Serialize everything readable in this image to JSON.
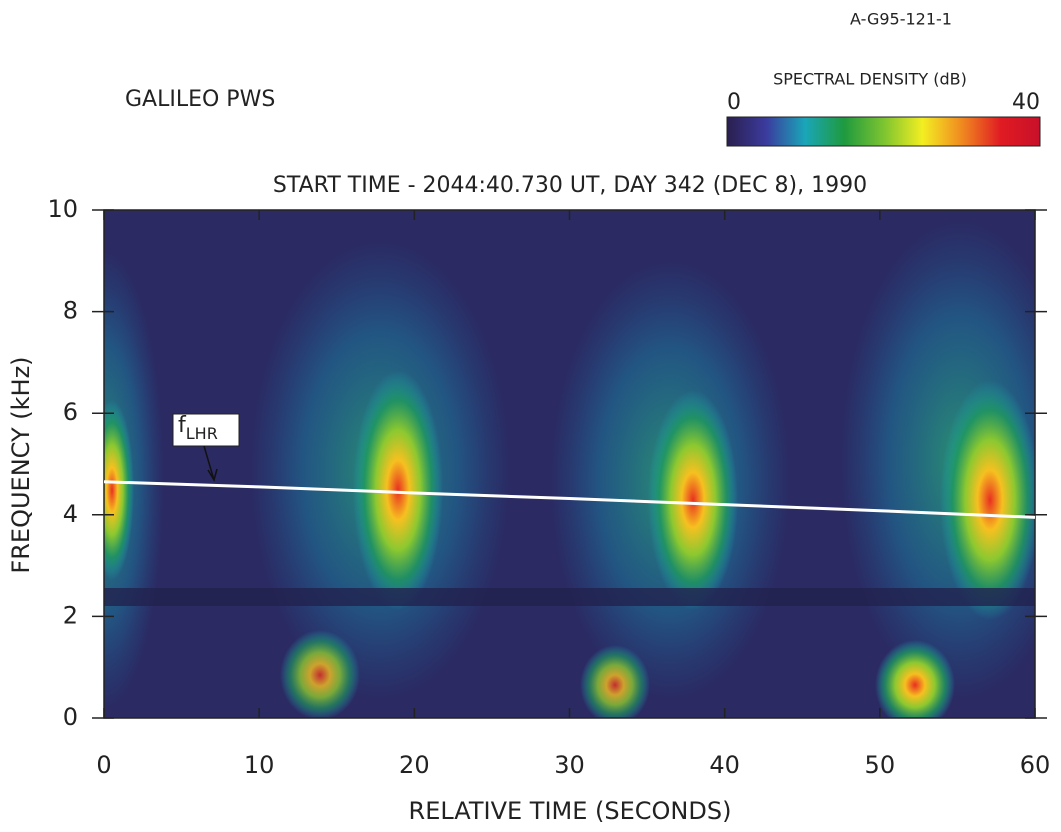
{
  "chart_data": {
    "type": "spectrogram",
    "id_label": "A-G95-121-1",
    "instrument": "GALILEO PWS",
    "title": "START TIME - 2044:40.730 UT, DAY 342 (DEC 8), 1990",
    "xlabel": "RELATIVE TIME (SECONDS)",
    "ylabel": "FREQUENCY (kHz)",
    "xlim": [
      0,
      60
    ],
    "ylim": [
      0,
      10
    ],
    "xticks": [
      0,
      10,
      20,
      30,
      40,
      50,
      60
    ],
    "yticks": [
      0,
      2,
      4,
      6,
      8,
      10
    ],
    "colorbar": {
      "label": "SPECTRAL DENSITY (dB)",
      "range": [
        0,
        40
      ],
      "ticks": [
        0,
        40
      ],
      "colormap": [
        "#2a1f4e",
        "#3b3b9e",
        "#1aa6b8",
        "#1f9a3e",
        "#7cc430",
        "#f3ee22",
        "#f08a20",
        "#e01b22",
        "#c8102a"
      ]
    },
    "series": [
      {
        "name": "f",
        "subscript": "LHR",
        "color": "#ffffff",
        "x": [
          0,
          10,
          20,
          30,
          40,
          50,
          60
        ],
        "values": [
          4.65,
          4.55,
          4.43,
          4.32,
          4.2,
          4.08,
          3.95
        ]
      }
    ]
  }
}
